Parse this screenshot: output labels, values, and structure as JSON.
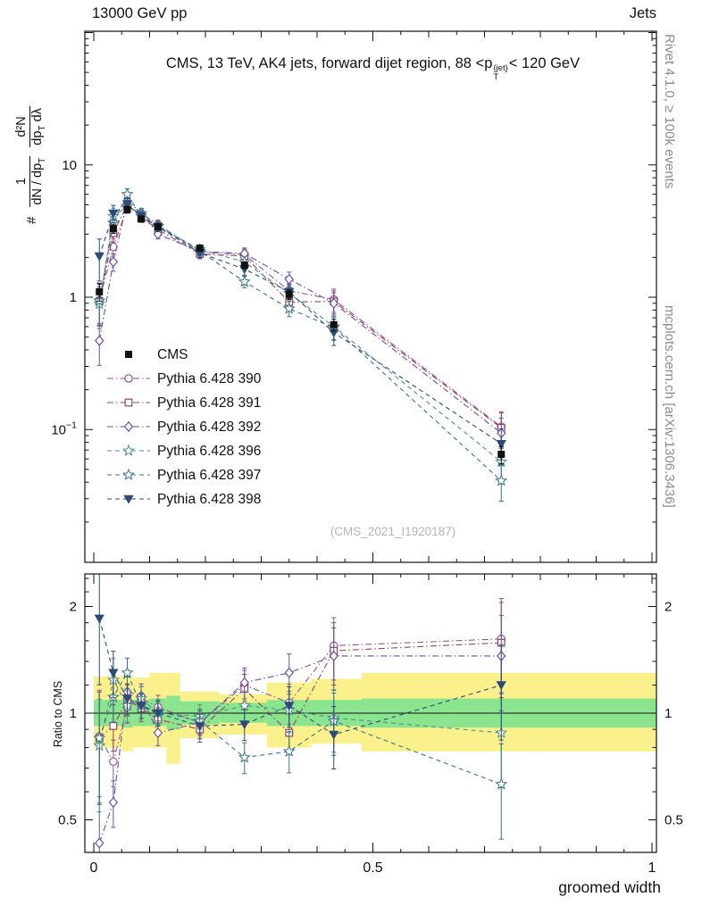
{
  "header": {
    "beam": "13000 GeV pp",
    "process": "Jets"
  },
  "title": {
    "pre": "CMS, 13 TeV, AK4 jets, forward dijet region, 88 <p",
    "sub": "T",
    "sup": "{jet}",
    "post": "< 120 GeV"
  },
  "ylabel": {
    "hash": "#",
    "f1num": "1",
    "f1den": "dN / dp",
    "fsub": "T",
    "f2num": "d²N",
    "f2den_a": "dp",
    "f2den_b": " dλ"
  },
  "ratio_label": "Ratio to CMS",
  "watermark": "(CMS_2021_I1920187)",
  "side": {
    "rivet": "Rivet 4.1.0, ≥ 100k events",
    "mcplots": "mcplots.cern.ch [arXiv:1306.3436]"
  },
  "axes": {
    "xlabel": "groomed width",
    "x_ticks": [
      {
        "v": 0,
        "label": "0"
      },
      {
        "v": 0.5,
        "label": "0.5"
      },
      {
        "v": 1,
        "label": "1"
      }
    ],
    "y_ticks_main": [
      {
        "v": 10,
        "label": "10"
      },
      {
        "v": 1,
        "label": "1"
      },
      {
        "v": 0.1,
        "label": "10",
        "exp": "−1"
      }
    ],
    "y_ticks_ratio": [
      {
        "v": 2,
        "label": "2"
      },
      {
        "v": 1,
        "label": "1"
      },
      {
        "v": 0.5,
        "label": "0.5"
      }
    ]
  },
  "chart_data": {
    "type": "line",
    "title": "CMS, 13 TeV, AK4 jets, forward dijet region, 88 < pT^{jet} < 120 GeV",
    "xlabel": "groomed width",
    "ylabel": "1/(dN/dpT) d²N/(dpT dλ)",
    "ratio_ylabel": "Ratio to CMS",
    "x_range": [
      -0.016,
      1.008
    ],
    "y_range_main": [
      0.01,
      100
    ],
    "y_scale_main": "log",
    "y_range_ratio": [
      0.4,
      2.47
    ],
    "y_scale_ratio": "log",
    "grid": false,
    "legend_position": "left-middle",
    "x": [
      0.01,
      0.035,
      0.06,
      0.085,
      0.115,
      0.19,
      0.27,
      0.35,
      0.43,
      0.73
    ],
    "series": [
      {
        "name": "CMS",
        "marker": "square-filled",
        "color": "#111111",
        "line": "none",
        "values": [
          1.1,
          3.3,
          4.6,
          3.9,
          3.4,
          2.35,
          1.75,
          1.05,
          0.62,
          0.065
        ],
        "err_frac": [
          0.15,
          0.08,
          0.06,
          0.05,
          0.05,
          0.05,
          0.06,
          0.08,
          0.1,
          0.15
        ]
      },
      {
        "name": "Pythia 6.428 390",
        "marker": "circle-open",
        "color": "#8f5a93",
        "line": "dashdot",
        "values": [
          0.95,
          2.4,
          4.8,
          4.3,
          3.55,
          2.2,
          2.1,
          1.12,
          0.96,
          0.105
        ],
        "ratio": [
          0.86,
          0.73,
          1.04,
          1.1,
          1.04,
          0.94,
          1.2,
          1.07,
          1.55,
          1.62
        ],
        "err_frac": [
          0.35,
          0.15,
          0.1,
          0.08,
          0.08,
          0.08,
          0.1,
          0.13,
          0.2,
          0.3
        ]
      },
      {
        "name": "Pythia 6.428 391",
        "marker": "square-open",
        "color": "#95425f",
        "line": "dashdot",
        "values": [
          0.93,
          3.05,
          5.0,
          4.0,
          3.25,
          2.12,
          2.05,
          0.92,
          0.93,
          0.103
        ],
        "ratio": [
          0.85,
          0.92,
          1.09,
          1.03,
          0.96,
          0.9,
          1.17,
          0.88,
          1.5,
          1.58
        ],
        "err_frac": [
          0.35,
          0.15,
          0.1,
          0.08,
          0.08,
          0.08,
          0.1,
          0.13,
          0.2,
          0.3
        ]
      },
      {
        "name": "Pythia 6.428 392",
        "marker": "diamond-open",
        "color": "#6950a1",
        "line": "dashdot",
        "values": [
          0.47,
          1.85,
          5.3,
          4.35,
          3.0,
          2.22,
          2.14,
          1.37,
          0.9,
          0.094
        ],
        "ratio": [
          0.43,
          0.56,
          1.15,
          1.12,
          0.88,
          0.94,
          1.22,
          1.3,
          1.45,
          1.45
        ],
        "err_frac": [
          0.35,
          0.15,
          0.1,
          0.08,
          0.08,
          0.08,
          0.1,
          0.13,
          0.2,
          0.3
        ]
      },
      {
        "name": "Pythia 6.428 396",
        "marker": "star-open",
        "color": "#4f9088",
        "line": "dashed",
        "values": [
          0.89,
          4.1,
          4.85,
          4.3,
          3.4,
          2.3,
          1.84,
          1.07,
          0.6,
          0.057
        ],
        "ratio": [
          0.81,
          1.24,
          1.05,
          1.1,
          1.0,
          0.98,
          1.05,
          1.02,
          0.97,
          0.88
        ],
        "err_frac": [
          0.35,
          0.15,
          0.1,
          0.08,
          0.08,
          0.08,
          0.1,
          0.13,
          0.2,
          0.3
        ]
      },
      {
        "name": "Pythia 6.428 397",
        "marker": "star-open",
        "color": "#397585",
        "line": "dashed",
        "values": [
          0.94,
          3.65,
          6.0,
          4.1,
          3.45,
          2.23,
          1.31,
          0.82,
          0.59,
          0.041
        ],
        "ratio": [
          0.85,
          1.11,
          1.3,
          1.05,
          1.01,
          0.95,
          0.75,
          0.78,
          0.95,
          0.63
        ],
        "err_frac": [
          0.35,
          0.15,
          0.1,
          0.08,
          0.08,
          0.08,
          0.1,
          0.13,
          0.2,
          0.3
        ]
      },
      {
        "name": "Pythia 6.428 398",
        "marker": "triangle-down-filled",
        "color": "#2e4a78",
        "line": "dashed",
        "values": [
          2.04,
          4.3,
          5.05,
          4.1,
          3.4,
          2.16,
          1.63,
          1.1,
          0.54,
          0.078
        ],
        "ratio": [
          1.85,
          1.3,
          1.1,
          1.05,
          1.0,
          0.92,
          0.93,
          1.05,
          0.87,
          1.2
        ],
        "err_frac": [
          0.35,
          0.15,
          0.1,
          0.08,
          0.08,
          0.08,
          0.1,
          0.13,
          0.2,
          0.3
        ]
      }
    ],
    "bands": {
      "edges": [
        0,
        0.02,
        0.05,
        0.07,
        0.1,
        0.13,
        0.155,
        0.225,
        0.31,
        0.39,
        0.48,
        1.008
      ],
      "yellow": [
        [
          0.8,
          1.27
        ],
        [
          0.8,
          1.27
        ],
        [
          0.78,
          1.28
        ],
        [
          0.8,
          1.26
        ],
        [
          0.8,
          1.3
        ],
        [
          0.72,
          1.3
        ],
        [
          0.85,
          1.15
        ],
        [
          0.87,
          1.13
        ],
        [
          0.8,
          1.22
        ],
        [
          0.82,
          1.25
        ],
        [
          0.78,
          1.3
        ]
      ],
      "green": [
        [
          0.92,
          1.09
        ],
        [
          0.92,
          1.09
        ],
        [
          0.91,
          1.1
        ],
        [
          0.92,
          1.09
        ],
        [
          0.92,
          1.1
        ],
        [
          0.9,
          1.12
        ],
        [
          0.93,
          1.08
        ],
        [
          0.94,
          1.07
        ],
        [
          0.92,
          1.09
        ],
        [
          0.92,
          1.09
        ],
        [
          0.91,
          1.1
        ]
      ],
      "yellow_color": "#fbf18c",
      "green_color": "#8be48e"
    }
  }
}
